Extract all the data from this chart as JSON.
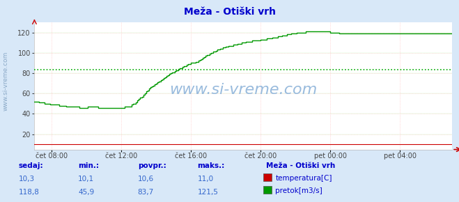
{
  "title": "Meža - Otiški vrh",
  "title_color": "#0000cc",
  "bg_color": "#d8e8f8",
  "plot_bg_color": "#ffffff",
  "grid_color_h": "#ff9999",
  "grid_color_v": "#ff9999",
  "hgrid_color": "#00bb00",
  "ylim": [
    5,
    130
  ],
  "yticks": [
    20,
    40,
    60,
    80,
    100,
    120
  ],
  "x_tick_labels": [
    "čet 08:00",
    "čet 12:00",
    "čet 16:00",
    "čet 20:00",
    "pet 00:00",
    "pet 04:00"
  ],
  "hline_value": 83.7,
  "hline_color": "#00aa00",
  "temp_color": "#cc0000",
  "flow_color": "#009900",
  "watermark": "www.si-vreme.com",
  "watermark_color": "#99bbdd",
  "ylabel_left": "www.si-vreme.com",
  "footer_label_color": "#0000cc",
  "footer_value_color": "#3366cc",
  "legend_title": "Meža - Otiški vrh",
  "legend_title_color": "#0000cc",
  "legend_temp_label": "temperatura[C]",
  "legend_flow_label": "pretok[m3/s]",
  "sedaj_label": "sedaj:",
  "min_label": "min.:",
  "povpr_label": "povpr.:",
  "maks_label": "maks.:",
  "temp_sedaj": "10,3",
  "temp_min": "10,1",
  "temp_povpr": "10,6",
  "temp_maks": "11,0",
  "flow_sedaj": "118,8",
  "flow_min": "45,9",
  "flow_povpr": "83,7",
  "flow_maks": "121,5",
  "temp_line_value": 10.3,
  "n_points": 289,
  "flow_data_x": [
    0,
    1,
    2,
    3,
    4,
    5,
    6,
    7,
    8,
    9,
    10,
    11,
    12,
    13,
    14,
    15,
    16,
    17,
    18,
    19,
    20,
    21,
    22,
    23,
    24,
    25,
    26,
    27,
    28,
    29,
    30,
    31,
    32,
    33,
    34,
    35,
    36,
    37,
    38,
    39,
    40,
    41,
    42,
    43,
    44,
    45,
    46,
    47,
    48,
    49,
    50,
    51,
    52,
    53,
    54,
    55,
    56,
    57,
    58,
    59,
    60,
    61,
    62,
    63,
    64,
    65,
    66,
    67,
    68,
    69,
    70,
    71,
    72,
    73,
    74,
    75,
    76,
    77,
    78,
    79,
    80,
    81,
    82,
    83,
    84,
    85,
    86,
    87,
    88,
    89,
    90,
    91,
    92,
    93,
    94,
    95,
    96,
    97,
    98,
    99,
    100,
    101,
    102,
    103,
    104,
    105,
    106,
    107,
    108,
    109,
    110,
    111,
    112,
    113,
    114,
    115,
    116,
    117,
    118,
    119,
    120,
    121,
    122,
    123,
    124,
    125,
    126,
    127,
    128,
    129,
    130,
    131,
    132,
    133,
    134,
    135,
    136,
    137,
    138,
    139,
    140,
    141,
    142,
    143,
    144,
    145,
    146,
    147,
    148,
    149,
    150,
    151,
    152,
    153,
    154,
    155,
    156,
    157,
    158,
    159,
    160,
    161,
    162,
    163,
    164,
    165,
    166,
    167,
    168,
    169,
    170,
    171,
    172,
    173,
    174,
    175,
    176,
    177,
    178,
    179,
    180,
    181,
    182,
    183,
    184,
    185,
    186,
    187,
    188,
    189,
    190,
    191,
    192,
    193,
    194,
    195,
    196,
    197,
    198,
    199,
    200,
    201,
    202,
    203,
    204,
    205,
    206,
    207,
    208,
    209,
    210,
    211,
    212,
    213,
    214,
    215,
    216,
    217,
    218,
    219,
    220,
    221,
    222,
    223,
    224,
    225,
    226,
    227,
    228,
    229,
    230,
    231,
    232,
    233,
    234,
    235,
    236,
    237,
    238,
    239,
    240,
    241,
    242,
    243,
    244,
    245,
    246,
    247,
    248,
    249,
    250,
    251,
    252,
    253,
    254,
    255,
    256,
    257,
    258,
    259,
    260,
    261,
    262,
    263,
    264,
    265,
    266,
    267,
    268,
    269,
    270,
    271,
    272,
    273,
    274,
    275,
    276,
    277,
    278,
    279,
    280,
    281,
    282,
    283,
    284,
    285,
    286,
    287,
    288
  ],
  "flow_data_values": [
    52,
    52,
    52,
    51,
    51,
    51,
    51,
    50,
    50,
    50,
    50,
    49,
    49,
    49,
    49,
    49,
    49,
    48,
    48,
    48,
    48,
    48,
    47,
    47,
    47,
    47,
    47,
    47,
    47,
    47,
    47,
    46,
    46,
    46,
    46,
    46,
    46,
    47,
    47,
    47,
    47,
    47,
    47,
    47,
    46,
    46,
    46,
    46,
    46,
    46,
    46,
    46,
    46,
    46,
    46,
    46,
    46,
    46,
    46,
    46,
    46,
    46,
    47,
    47,
    47,
    47,
    47,
    49,
    50,
    50,
    51,
    53,
    55,
    56,
    57,
    59,
    60,
    62,
    63,
    65,
    66,
    67,
    68,
    69,
    70,
    71,
    72,
    73,
    74,
    75,
    76,
    77,
    78,
    79,
    80,
    81,
    81,
    82,
    83,
    84,
    85,
    85,
    86,
    87,
    87,
    88,
    89,
    89,
    90,
    90,
    90,
    91,
    91,
    92,
    93,
    94,
    95,
    96,
    97,
    98,
    98,
    99,
    100,
    101,
    101,
    102,
    103,
    103,
    104,
    104,
    105,
    105,
    106,
    106,
    107,
    107,
    107,
    108,
    108,
    108,
    109,
    109,
    109,
    110,
    110,
    110,
    111,
    111,
    111,
    111,
    112,
    112,
    112,
    112,
    112,
    112,
    113,
    113,
    113,
    113,
    114,
    114,
    114,
    114,
    115,
    115,
    115,
    115,
    116,
    116,
    116,
    117,
    117,
    117,
    118,
    118,
    118,
    119,
    119,
    119,
    119,
    120,
    120,
    120,
    120,
    120,
    120,
    121,
    121,
    121,
    121,
    121,
    121,
    121,
    121,
    121,
    121,
    121,
    121,
    121,
    121,
    121,
    121,
    121,
    120,
    120,
    120,
    120,
    120,
    120,
    119,
    119,
    119,
    119,
    119,
    119,
    119,
    119,
    119,
    119,
    119,
    119,
    119,
    119,
    119,
    119,
    119,
    119,
    119,
    119,
    119,
    119,
    119,
    119,
    119,
    119,
    119,
    119,
    119,
    119,
    119,
    119,
    119,
    119,
    119,
    119,
    119,
    119,
    119,
    119,
    119,
    119,
    119,
    119,
    119,
    119,
    119,
    119,
    119,
    119,
    119,
    119,
    119,
    119,
    119,
    119,
    119,
    119,
    119,
    119,
    119,
    119,
    119,
    119,
    119,
    119,
    119,
    119,
    119,
    119,
    119,
    119,
    119,
    119,
    119,
    119,
    119,
    119,
    119
  ]
}
